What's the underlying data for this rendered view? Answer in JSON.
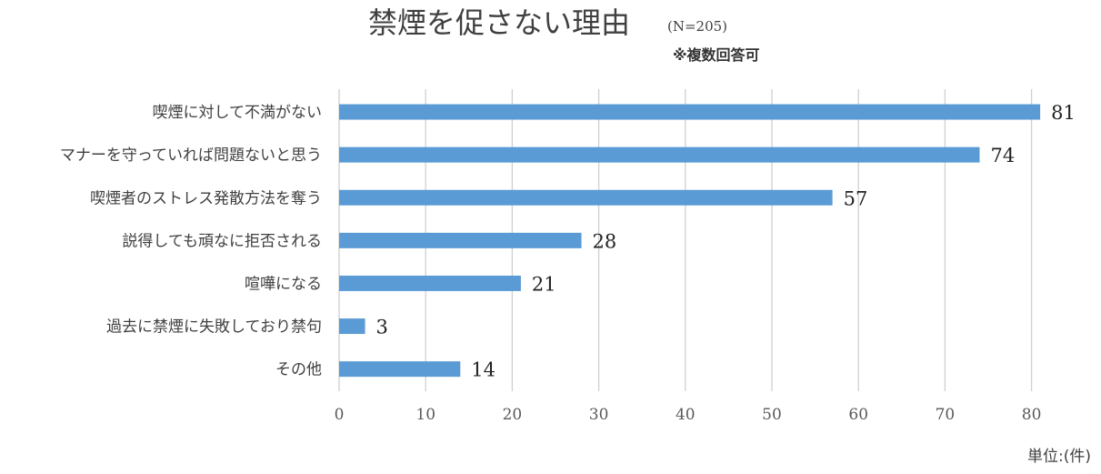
{
  "chart_data": {
    "type": "bar",
    "orientation": "horizontal",
    "title": "禁煙を促さない理由",
    "title_note": "(N=205)",
    "subtitle": "※複数回答可",
    "categories": [
      "喫煙に対して不満がない",
      "マナーを守っていれば問題ないと思う",
      "喫煙者のストレス発散方法を奪う",
      "説得しても頑なに拒否される",
      "喧嘩になる",
      "過去に禁煙に失敗しており禁句",
      "その他"
    ],
    "values": [
      81,
      74,
      57,
      28,
      21,
      3,
      14
    ],
    "data_labels": [
      "81",
      "74",
      "57",
      "28",
      "21",
      "3",
      "14"
    ],
    "xlim": [
      0,
      85
    ],
    "x_ticks": [
      "0",
      "10",
      "20",
      "30",
      "40",
      "50",
      "60",
      "70",
      "80"
    ],
    "unit": "単位:(件)",
    "grid": true,
    "bar_color": "#5b9bd5",
    "grid_color": "#d0d0d0"
  }
}
